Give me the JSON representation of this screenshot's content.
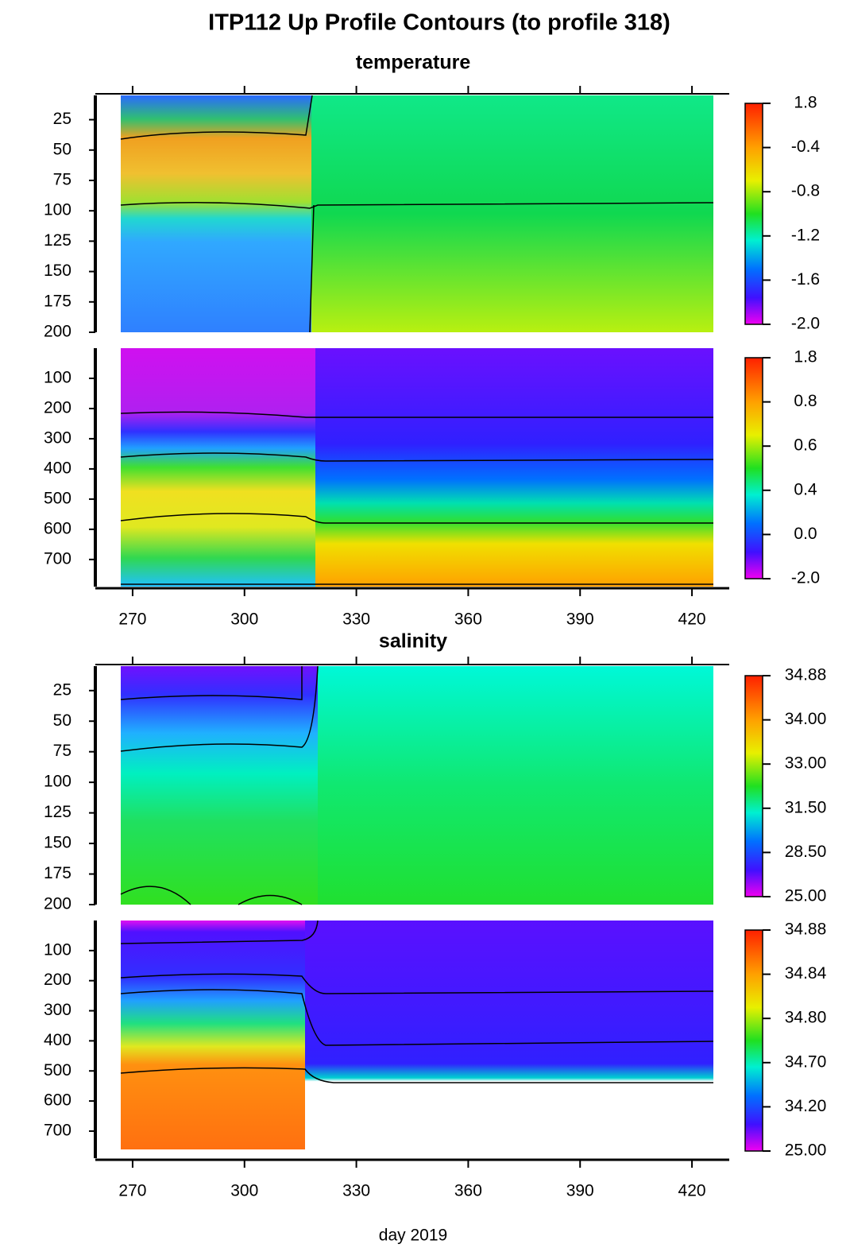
{
  "title": "ITP112 Up Profile Contours (to profile 318)",
  "xlabel": "day 2019",
  "chart_data": [
    {
      "type": "heatmap",
      "title": "temperature",
      "ylim": [
        5,
        200
      ],
      "yticks": [
        25,
        50,
        75,
        100,
        125,
        150,
        175,
        200
      ],
      "colorbar_ticks": [
        1.8,
        -0.4,
        -0.8,
        -1.2,
        -1.6,
        {
          "value": -2,
          "label": "-2.0"
        }
      ]
    },
    {
      "type": "heatmap",
      "ylim": [
        0,
        790
      ],
      "yticks": [
        100,
        200,
        300,
        400,
        500,
        600,
        700
      ],
      "xlim": [
        260,
        430
      ],
      "xticks": [
        270,
        300,
        330,
        360,
        390,
        420
      ],
      "colorbar_ticks": [
        1.8,
        0.8,
        0.6,
        0.4,
        {
          "value": 0,
          "label": "0.0"
        },
        {
          "value": -2,
          "label": "-2.0"
        }
      ]
    },
    {
      "type": "heatmap",
      "title": "salinity",
      "ylim": [
        5,
        200
      ],
      "yticks": [
        25,
        50,
        75,
        100,
        125,
        150,
        175,
        200
      ],
      "colorbar_ticks": [
        34.88,
        {
          "value": 34,
          "label": "34.00"
        },
        {
          "value": 33,
          "label": "33.00"
        },
        {
          "value": 31.5,
          "label": "31.50"
        },
        {
          "value": 28.5,
          "label": "28.50"
        },
        {
          "value": 25,
          "label": "25.00"
        }
      ]
    },
    {
      "type": "heatmap",
      "ylim": [
        0,
        790
      ],
      "yticks": [
        100,
        200,
        300,
        400,
        500,
        600,
        700
      ],
      "xlim": [
        260,
        430
      ],
      "xticks": [
        270,
        300,
        330,
        360,
        390,
        420
      ],
      "colorbar_ticks": [
        34.88,
        34.84,
        {
          "value": 34.8,
          "label": "34.80"
        },
        {
          "value": 34.7,
          "label": "34.70"
        },
        {
          "value": 34.2,
          "label": "34.20"
        },
        {
          "value": 25,
          "label": "25.00"
        }
      ]
    }
  ]
}
